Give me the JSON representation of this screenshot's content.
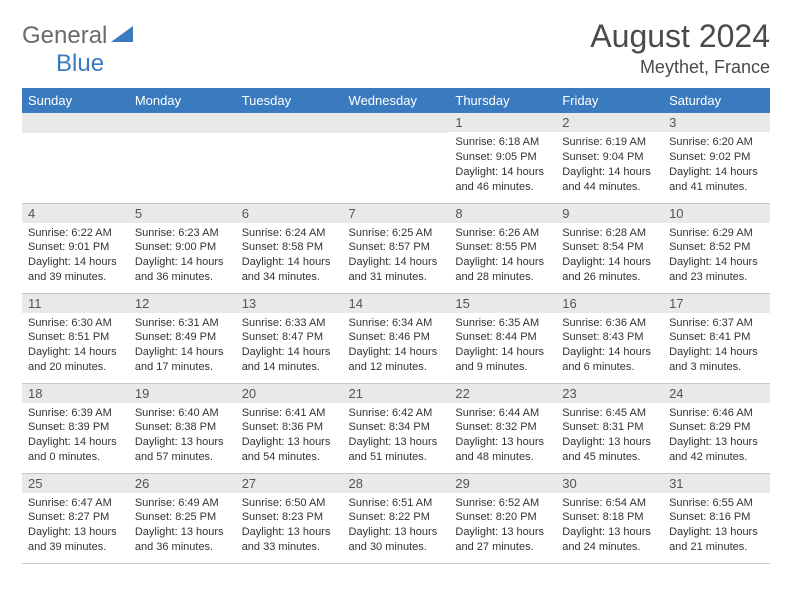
{
  "logo": {
    "general": "General",
    "blue": "Blue"
  },
  "title": {
    "month": "August 2024",
    "location": "Meythet, France"
  },
  "colors": {
    "header_bg": "#3a7bbf",
    "header_fg": "#ffffff",
    "daynum_bg": "#e9e9e9",
    "text": "#333333",
    "row_border": "#c8c8c8"
  },
  "layout": {
    "cols": 7,
    "rows": 5,
    "first_day_col": 4
  },
  "weekdays": [
    "Sunday",
    "Monday",
    "Tuesday",
    "Wednesday",
    "Thursday",
    "Friday",
    "Saturday"
  ],
  "days": [
    {
      "n": 1,
      "sunrise": "6:18 AM",
      "sunset": "9:05 PM",
      "daylight": "14 hours and 46 minutes."
    },
    {
      "n": 2,
      "sunrise": "6:19 AM",
      "sunset": "9:04 PM",
      "daylight": "14 hours and 44 minutes."
    },
    {
      "n": 3,
      "sunrise": "6:20 AM",
      "sunset": "9:02 PM",
      "daylight": "14 hours and 41 minutes."
    },
    {
      "n": 4,
      "sunrise": "6:22 AM",
      "sunset": "9:01 PM",
      "daylight": "14 hours and 39 minutes."
    },
    {
      "n": 5,
      "sunrise": "6:23 AM",
      "sunset": "9:00 PM",
      "daylight": "14 hours and 36 minutes."
    },
    {
      "n": 6,
      "sunrise": "6:24 AM",
      "sunset": "8:58 PM",
      "daylight": "14 hours and 34 minutes."
    },
    {
      "n": 7,
      "sunrise": "6:25 AM",
      "sunset": "8:57 PM",
      "daylight": "14 hours and 31 minutes."
    },
    {
      "n": 8,
      "sunrise": "6:26 AM",
      "sunset": "8:55 PM",
      "daylight": "14 hours and 28 minutes."
    },
    {
      "n": 9,
      "sunrise": "6:28 AM",
      "sunset": "8:54 PM",
      "daylight": "14 hours and 26 minutes."
    },
    {
      "n": 10,
      "sunrise": "6:29 AM",
      "sunset": "8:52 PM",
      "daylight": "14 hours and 23 minutes."
    },
    {
      "n": 11,
      "sunrise": "6:30 AM",
      "sunset": "8:51 PM",
      "daylight": "14 hours and 20 minutes."
    },
    {
      "n": 12,
      "sunrise": "6:31 AM",
      "sunset": "8:49 PM",
      "daylight": "14 hours and 17 minutes."
    },
    {
      "n": 13,
      "sunrise": "6:33 AM",
      "sunset": "8:47 PM",
      "daylight": "14 hours and 14 minutes."
    },
    {
      "n": 14,
      "sunrise": "6:34 AM",
      "sunset": "8:46 PM",
      "daylight": "14 hours and 12 minutes."
    },
    {
      "n": 15,
      "sunrise": "6:35 AM",
      "sunset": "8:44 PM",
      "daylight": "14 hours and 9 minutes."
    },
    {
      "n": 16,
      "sunrise": "6:36 AM",
      "sunset": "8:43 PM",
      "daylight": "14 hours and 6 minutes."
    },
    {
      "n": 17,
      "sunrise": "6:37 AM",
      "sunset": "8:41 PM",
      "daylight": "14 hours and 3 minutes."
    },
    {
      "n": 18,
      "sunrise": "6:39 AM",
      "sunset": "8:39 PM",
      "daylight": "14 hours and 0 minutes."
    },
    {
      "n": 19,
      "sunrise": "6:40 AM",
      "sunset": "8:38 PM",
      "daylight": "13 hours and 57 minutes."
    },
    {
      "n": 20,
      "sunrise": "6:41 AM",
      "sunset": "8:36 PM",
      "daylight": "13 hours and 54 minutes."
    },
    {
      "n": 21,
      "sunrise": "6:42 AM",
      "sunset": "8:34 PM",
      "daylight": "13 hours and 51 minutes."
    },
    {
      "n": 22,
      "sunrise": "6:44 AM",
      "sunset": "8:32 PM",
      "daylight": "13 hours and 48 minutes."
    },
    {
      "n": 23,
      "sunrise": "6:45 AM",
      "sunset": "8:31 PM",
      "daylight": "13 hours and 45 minutes."
    },
    {
      "n": 24,
      "sunrise": "6:46 AM",
      "sunset": "8:29 PM",
      "daylight": "13 hours and 42 minutes."
    },
    {
      "n": 25,
      "sunrise": "6:47 AM",
      "sunset": "8:27 PM",
      "daylight": "13 hours and 39 minutes."
    },
    {
      "n": 26,
      "sunrise": "6:49 AM",
      "sunset": "8:25 PM",
      "daylight": "13 hours and 36 minutes."
    },
    {
      "n": 27,
      "sunrise": "6:50 AM",
      "sunset": "8:23 PM",
      "daylight": "13 hours and 33 minutes."
    },
    {
      "n": 28,
      "sunrise": "6:51 AM",
      "sunset": "8:22 PM",
      "daylight": "13 hours and 30 minutes."
    },
    {
      "n": 29,
      "sunrise": "6:52 AM",
      "sunset": "8:20 PM",
      "daylight": "13 hours and 27 minutes."
    },
    {
      "n": 30,
      "sunrise": "6:54 AM",
      "sunset": "8:18 PM",
      "daylight": "13 hours and 24 minutes."
    },
    {
      "n": 31,
      "sunrise": "6:55 AM",
      "sunset": "8:16 PM",
      "daylight": "13 hours and 21 minutes."
    }
  ],
  "labels": {
    "sunrise": "Sunrise:",
    "sunset": "Sunset:",
    "daylight": "Daylight:"
  }
}
